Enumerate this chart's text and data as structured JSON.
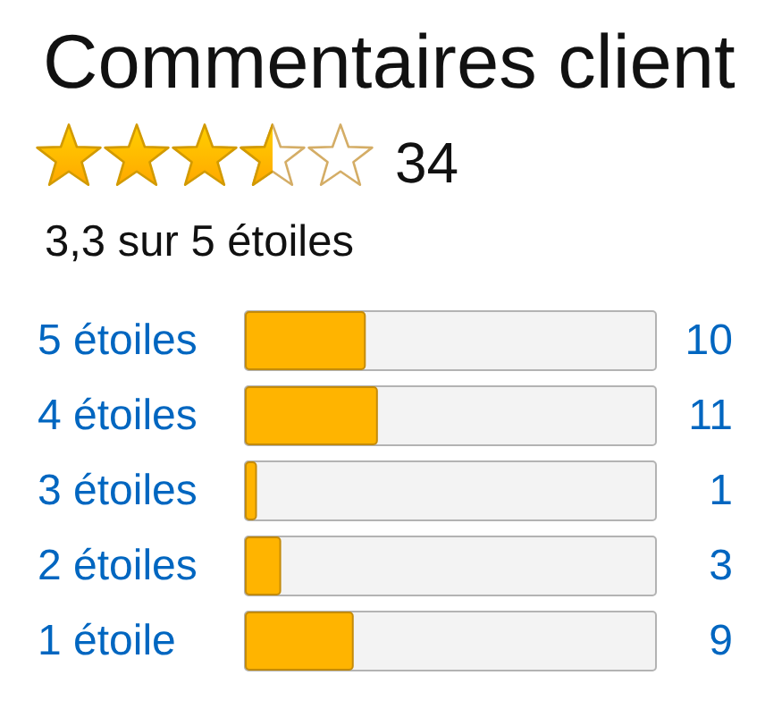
{
  "chart_data": {
    "type": "bar",
    "orientation": "horizontal",
    "title": "Commentaires client",
    "subtitle": "3,3 sur 5 étoiles",
    "annotations": [
      "34"
    ],
    "categories": [
      "5 étoiles",
      "4 étoiles",
      "3 étoiles",
      "2 étoiles",
      "1 étoile"
    ],
    "values": [
      10,
      11,
      1,
      3,
      9
    ],
    "color": "#ffb400",
    "xlim": [
      0,
      34
    ],
    "data_labels": true,
    "tick_labels": "y"
  }
}
